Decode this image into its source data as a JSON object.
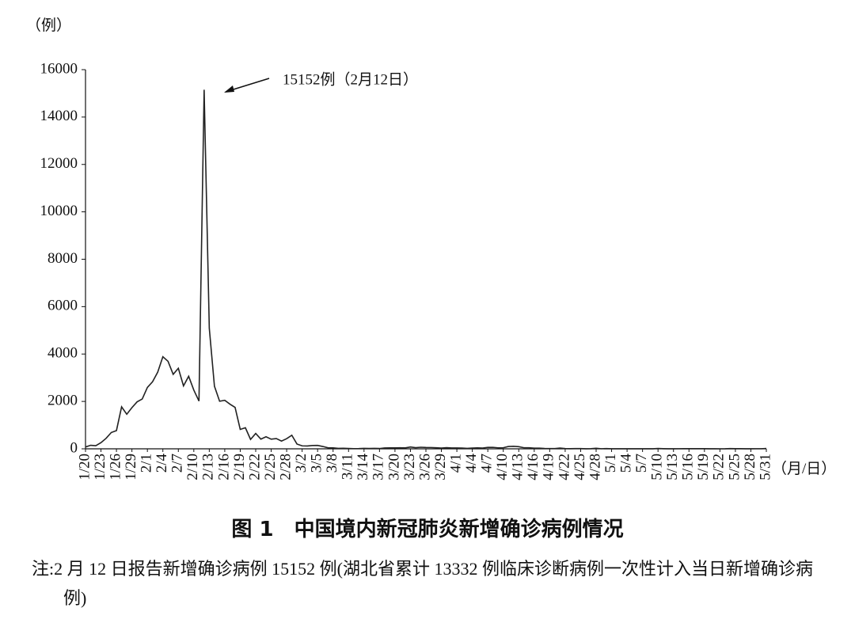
{
  "chart_data": {
    "type": "line",
    "y_unit": "（例）",
    "x_unit": "（月/日）",
    "title": "图 1　中国境内新冠肺炎新增确诊病例情况",
    "note": "注:2 月 12 日报告新增确诊病例 15152 例(湖北省累计 13332 例临床诊断病例一次性计入当日新增确诊病例)",
    "annotation": "15152例（2月12日）",
    "ylim": [
      0,
      16000
    ],
    "yticks": [
      0,
      2000,
      4000,
      6000,
      8000,
      10000,
      12000,
      14000,
      16000
    ],
    "color": "#222222",
    "categories": [
      "1/20",
      null,
      null,
      "1/23",
      null,
      null,
      "1/26",
      null,
      null,
      "1/29",
      null,
      null,
      "2/1",
      null,
      null,
      "2/4",
      null,
      null,
      "2/7",
      null,
      null,
      "2/10",
      null,
      null,
      "2/13",
      null,
      null,
      "2/16",
      null,
      null,
      "2/19",
      null,
      null,
      "2/22",
      null,
      null,
      "2/25",
      null,
      null,
      "2/28",
      null,
      null,
      "3/2",
      null,
      null,
      "3/5",
      null,
      null,
      "3/8",
      null,
      null,
      "3/11",
      null,
      null,
      "3/14",
      null,
      null,
      "3/17",
      null,
      null,
      "3/20",
      null,
      null,
      "3/23",
      null,
      null,
      "3/26",
      null,
      null,
      "3/29",
      null,
      null,
      "4/1",
      null,
      null,
      "4/4",
      null,
      null,
      "4/7",
      null,
      null,
      "4/10",
      null,
      null,
      "4/13",
      null,
      null,
      "4/16",
      null,
      null,
      "4/19",
      null,
      null,
      "4/22",
      null,
      null,
      "4/25",
      null,
      null,
      "4/28",
      null,
      null,
      "5/1",
      null,
      null,
      "5/4",
      null,
      null,
      "5/7",
      null,
      null,
      "5/10",
      null,
      null,
      "5/13",
      null,
      null,
      "5/16",
      null,
      null,
      "5/19",
      null,
      null,
      "5/22",
      null,
      null,
      "5/25",
      null,
      null,
      "5/28",
      null,
      null,
      "5/31"
    ],
    "values": [
      77,
      149,
      131,
      259,
      444,
      688,
      769,
      1771,
      1459,
      1737,
      1982,
      2102,
      2590,
      2829,
      3235,
      3887,
      3694,
      3143,
      3399,
      2656,
      3062,
      2478,
      2015,
      15152,
      5090,
      2641,
      2009,
      2048,
      1886,
      1749,
      820,
      889,
      397,
      648,
      409,
      508,
      406,
      433,
      327,
      427,
      573,
      202,
      125,
      119,
      139,
      143,
      99,
      44,
      40,
      19,
      24,
      15,
      8,
      11,
      20,
      16,
      21,
      13,
      34,
      39,
      41,
      46,
      39,
      78,
      47,
      67,
      55,
      54,
      45,
      31,
      48,
      36,
      35,
      31,
      19,
      30,
      39,
      32,
      62,
      63,
      42,
      46,
      99,
      108,
      89,
      46,
      46,
      26,
      27,
      16,
      12,
      11,
      30,
      10,
      6,
      12,
      11,
      3,
      6,
      22,
      4,
      12,
      2,
      1,
      2,
      3,
      1,
      2,
      4,
      1,
      1,
      17,
      7,
      1,
      3,
      4,
      5,
      5,
      7,
      6,
      5,
      3,
      4,
      0,
      3,
      11,
      7,
      7,
      1,
      2,
      4,
      4,
      16
    ]
  }
}
